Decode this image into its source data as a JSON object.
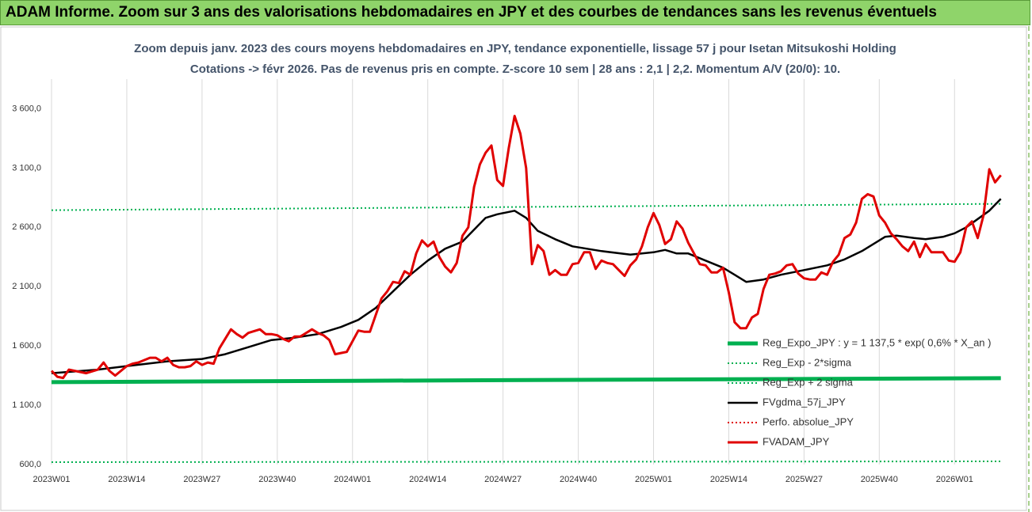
{
  "header": {
    "title": "ADAM Informe. Zoom sur 3 ans des valorisations hebdomadaires en JPY et des courbes de tendances sans les revenus éventuels"
  },
  "chart_data": {
    "type": "line",
    "title": "Zoom depuis janv. 2023 des cours moyens hebdomadaires en JPY, tendance exponentielle, lissage 57 j pour Isetan Mitsukoshi Holding",
    "subtitle": "Cotations -> févr 2026. Pas de revenus pris en compte. Z-score 10 sem | 28 ans : 2,1 | 2,2. Momentum A/V (20/0): 10.",
    "xlim": [
      0,
      165
    ],
    "xticks": [
      {
        "value": 0,
        "label": "2023W01"
      },
      {
        "value": 13,
        "label": "2023W14"
      },
      {
        "value": 26,
        "label": "2023W27"
      },
      {
        "value": 39,
        "label": "2023W40"
      },
      {
        "value": 52,
        "label": "2024W01"
      },
      {
        "value": 65,
        "label": "2024W14"
      },
      {
        "value": 78,
        "label": "2024W27"
      },
      {
        "value": 91,
        "label": "2024W40"
      },
      {
        "value": 104,
        "label": "2025W01"
      },
      {
        "value": 117,
        "label": "2025W14"
      },
      {
        "value": 130,
        "label": "2025W27"
      },
      {
        "value": 143,
        "label": "2025W40"
      },
      {
        "value": 156,
        "label": "2026W01"
      }
    ],
    "ylim": [
      600,
      3850
    ],
    "yticks": [
      {
        "value": 600,
        "label": "600,0"
      },
      {
        "value": 1100,
        "label": "1 100,0"
      },
      {
        "value": 1600,
        "label": "1 600,0"
      },
      {
        "value": 2100,
        "label": "2 100,0"
      },
      {
        "value": 2600,
        "label": "2 600,0"
      },
      {
        "value": 3100,
        "label": "3 100,0"
      },
      {
        "value": 3600,
        "label": "3 600,0"
      }
    ],
    "grid": "x",
    "legend": "bottom-right",
    "series": [
      {
        "name": "Reg_Expo_JPY : y = 1 137,5 * exp( 0,6% * X_an )",
        "color": "#00b050",
        "style": "thick",
        "x": [
          0,
          52,
          105,
          164
        ],
        "values": [
          1295,
          1306,
          1317,
          1328
        ]
      },
      {
        "name": "Reg_Exp - 2*sigma",
        "color": "#00b050",
        "style": "dotted",
        "x": [
          0,
          52,
          105,
          164
        ],
        "values": [
          620,
          622,
          624,
          627
        ]
      },
      {
        "name": "Reg_Exp + 2 sigma",
        "color": "#00b050",
        "style": "dotted",
        "x": [
          0,
          52,
          105,
          164
        ],
        "values": [
          2745,
          2762,
          2780,
          2798
        ]
      },
      {
        "name": "FVgdma_57j_JPY",
        "color": "#000000",
        "style": "solid",
        "x": [
          0,
          8,
          13,
          20,
          26,
          30,
          34,
          38,
          42,
          46,
          50,
          53,
          56,
          59,
          62,
          65,
          68,
          71,
          73,
          75,
          77,
          80,
          82,
          84,
          87,
          90,
          95,
          100,
          104,
          106,
          108,
          110,
          113,
          116,
          118,
          120,
          123,
          126,
          130,
          134,
          137,
          140,
          142,
          144,
          146,
          149,
          151,
          154,
          156,
          158,
          160,
          162,
          164
        ],
        "values": [
          1370,
          1400,
          1430,
          1470,
          1490,
          1530,
          1590,
          1650,
          1670,
          1700,
          1760,
          1820,
          1920,
          2060,
          2200,
          2320,
          2420,
          2480,
          2580,
          2680,
          2710,
          2740,
          2680,
          2570,
          2500,
          2440,
          2400,
          2370,
          2390,
          2410,
          2380,
          2380,
          2320,
          2260,
          2200,
          2140,
          2160,
          2200,
          2240,
          2280,
          2330,
          2400,
          2460,
          2520,
          2530,
          2510,
          2500,
          2520,
          2550,
          2600,
          2670,
          2740,
          2840
        ]
      },
      {
        "name": "Perfo. absolue_JPY",
        "color": "#e00000",
        "style": "dotted",
        "x": [],
        "values": []
      },
      {
        "name": "FVADAM_JPY",
        "color": "#e00000",
        "style": "bold",
        "x": [
          0,
          1,
          2,
          3,
          5,
          6,
          8,
          9,
          10,
          11,
          13,
          14,
          15,
          17,
          18,
          19,
          20,
          21,
          22,
          23,
          24,
          25,
          26,
          27,
          28,
          29,
          31,
          32,
          33,
          34,
          36,
          37,
          38,
          39,
          40,
          41,
          42,
          43,
          45,
          46,
          47,
          48,
          49,
          51,
          53,
          54,
          55,
          57,
          58,
          59,
          60,
          61,
          62,
          63,
          64,
          65,
          66,
          67,
          68,
          69,
          70,
          71,
          72,
          73,
          74,
          75,
          76,
          77,
          78,
          79,
          80,
          81,
          82,
          83,
          84,
          85,
          86,
          87,
          88,
          89,
          90,
          91,
          92,
          93,
          94,
          95,
          96,
          97,
          98,
          99,
          100,
          101,
          102,
          103,
          104,
          105,
          106,
          107,
          108,
          109,
          110,
          111,
          112,
          113,
          114,
          115,
          116,
          117,
          118,
          119,
          120,
          121,
          122,
          123,
          124,
          125,
          126,
          127,
          128,
          129,
          130,
          131,
          132,
          133,
          134,
          135,
          136,
          137,
          138,
          139,
          140,
          141,
          142,
          143,
          144,
          145,
          146,
          147,
          148,
          149,
          150,
          151,
          152,
          153,
          154,
          155,
          156,
          157,
          158,
          159,
          160,
          161,
          162,
          163,
          164
        ],
        "values": [
          1390,
          1340,
          1330,
          1400,
          1380,
          1370,
          1400,
          1460,
          1390,
          1350,
          1430,
          1450,
          1460,
          1500,
          1500,
          1470,
          1500,
          1440,
          1420,
          1420,
          1430,
          1470,
          1440,
          1460,
          1450,
          1580,
          1740,
          1700,
          1670,
          1710,
          1740,
          1700,
          1700,
          1690,
          1660,
          1640,
          1680,
          1680,
          1740,
          1710,
          1690,
          1650,
          1530,
          1550,
          1730,
          1720,
          1720,
          2000,
          2060,
          2140,
          2130,
          2230,
          2200,
          2380,
          2490,
          2440,
          2480,
          2350,
          2270,
          2220,
          2300,
          2530,
          2600,
          2940,
          3130,
          3230,
          3290,
          3000,
          2950,
          3270,
          3540,
          3390,
          3100,
          2290,
          2450,
          2400,
          2200,
          2240,
          2200,
          2200,
          2290,
          2300,
          2390,
          2390,
          2250,
          2320,
          2300,
          2290,
          2240,
          2190,
          2280,
          2330,
          2440,
          2600,
          2720,
          2620,
          2460,
          2500,
          2650,
          2590,
          2470,
          2380,
          2290,
          2280,
          2220,
          2220,
          2260,
          2050,
          1800,
          1750,
          1750,
          1840,
          1870,
          2080,
          2200,
          2210,
          2230,
          2280,
          2290,
          2210,
          2170,
          2160,
          2160,
          2220,
          2200,
          2310,
          2370,
          2510,
          2540,
          2640,
          2840,
          2880,
          2860,
          2700,
          2640,
          2550,
          2500,
          2440,
          2400,
          2480,
          2350,
          2460,
          2390,
          2390,
          2390,
          2320,
          2310,
          2390,
          2600,
          2650,
          2510,
          2700,
          3090,
          2980,
          3040
        ]
      }
    ]
  }
}
